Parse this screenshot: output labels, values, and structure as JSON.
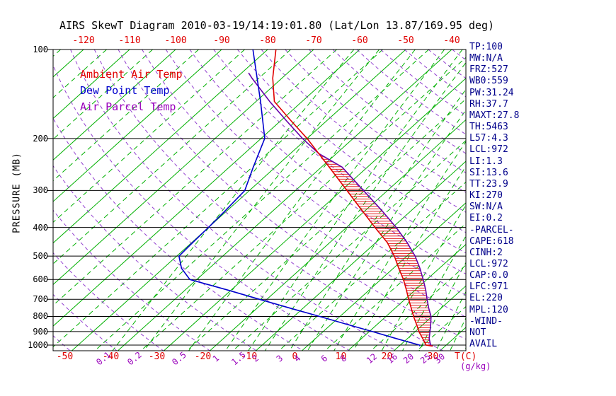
{
  "title": "AIRS SkewT Diagram 2010-03-19/14:19:01.80 (Lat/Lon 13.87/169.95 deg)",
  "legend": {
    "ambient": "Ambient Air Temp",
    "dew": "Dew Point Temp",
    "parcel": "Air Parcel Temp"
  },
  "axes": {
    "pressure_axis_label": "PRESSURE (MB)",
    "pressure_ticks": [
      100,
      200,
      300,
      400,
      500,
      600,
      700,
      800,
      900,
      1000
    ],
    "top_temp_ticks": [
      -120,
      -110,
      -100,
      -90,
      -80,
      -70,
      -60,
      -50,
      -40
    ],
    "bottom_temp_ticks": [
      -50,
      -40,
      -30,
      -20,
      -10,
      0,
      10,
      20,
      30
    ],
    "temp_unit_label": "T(C)",
    "mixing_ratio_ticks": [
      0.1,
      0.2,
      0.5,
      1,
      1.5,
      2,
      3,
      4,
      6,
      8,
      12,
      16,
      20,
      25,
      30
    ],
    "mixing_unit_label": "(g/kg)"
  },
  "stats_panel": {
    "lines": [
      "TP:100",
      "MW:N/A",
      "FRZ:527",
      "WB0:559",
      "PW:31.24",
      "RH:37.7",
      "MAXT:27.8",
      "TH:5463",
      "L57:4.3",
      "LCL:972",
      "LI:1.3",
      "SI:13.6",
      "TT:23.9",
      "KI:270",
      "SW:N/A",
      "EI:0.2",
      "-PARCEL-",
      "CAPE:618",
      "CINH:2",
      "LCL:972",
      "CAP:0.0",
      "LFC:971",
      "EL:220",
      "MPL:120",
      "-WIND-",
      "NOT",
      "AVAIL"
    ]
  },
  "colors": {
    "ambient": "#e00000",
    "dew": "#0000cd",
    "parcel": "#6600aa",
    "isotherm": "#00b000",
    "mixing_line": "#00b000",
    "dry_adiabat": "#9340d0",
    "isobar": "#000000",
    "tick_red": "#e00000",
    "mixing_label": "#9900bb",
    "stats_text": "#00008b",
    "title_text": "#000000"
  },
  "chart_data": {
    "type": "line",
    "title": "AIRS SkewT Diagram 2010-03-19/14:19:01.80 (Lat/Lon 13.87/169.95 deg)",
    "y_axis": {
      "label": "PRESSURE (MB)",
      "scale": "log",
      "range": [
        100,
        1045
      ],
      "ticks": [
        100,
        200,
        300,
        400,
        500,
        600,
        700,
        800,
        900,
        1000
      ]
    },
    "x_axis": {
      "label": "T(C)",
      "skew": true,
      "top_ticks_at_100mb": [
        -120,
        -110,
        -100,
        -90,
        -80,
        -70,
        -60,
        -50,
        -40
      ],
      "bottom_ticks_at_1000mb": [
        -50,
        -40,
        -30,
        -20,
        -10,
        0,
        10,
        20,
        30
      ]
    },
    "grid": {
      "isotherms_c": {
        "min": -160,
        "max": 45,
        "step": 5
      },
      "dry_adiabats_k": {
        "min": 210,
        "max": 460,
        "step": 10
      },
      "mixing_ratios_gkg": [
        0.1,
        0.2,
        0.5,
        1,
        1.5,
        2,
        3,
        4,
        6,
        8,
        12,
        16,
        20,
        25,
        30
      ]
    },
    "series": [
      {
        "id": "ambient-temp-curve",
        "name": "Ambient Air Temp",
        "color": "#e00000",
        "points_p_t": [
          [
            100,
            -78.2
          ],
          [
            125,
            -72.0
          ],
          [
            150,
            -66.0
          ],
          [
            175,
            -57.5
          ],
          [
            200,
            -50.0
          ],
          [
            250,
            -38.3
          ],
          [
            300,
            -28.8
          ],
          [
            350,
            -20.8
          ],
          [
            400,
            -13.8
          ],
          [
            450,
            -7.5
          ],
          [
            500,
            -2.7
          ],
          [
            550,
            1.2
          ],
          [
            600,
            4.9
          ],
          [
            650,
            8.0
          ],
          [
            700,
            10.8
          ],
          [
            750,
            13.5
          ],
          [
            800,
            16.0
          ],
          [
            850,
            18.5
          ],
          [
            900,
            20.8
          ],
          [
            950,
            23.3
          ],
          [
            1000,
            25.6
          ],
          [
            1008,
            27.3
          ]
        ]
      },
      {
        "id": "dew-point-curve",
        "name": "Dew Point Temp",
        "color": "#0000cd",
        "points_p_t": [
          [
            100,
            -83.2
          ],
          [
            150,
            -69.0
          ],
          [
            200,
            -59.2
          ],
          [
            250,
            -54.8
          ],
          [
            300,
            -51.0
          ],
          [
            350,
            -50.4
          ],
          [
            400,
            -50.0
          ],
          [
            450,
            -49.8
          ],
          [
            500,
            -49.5
          ],
          [
            550,
            -46.0
          ],
          [
            600,
            -41.5
          ],
          [
            650,
            -31.0
          ],
          [
            700,
            -21.6
          ],
          [
            750,
            -12.8
          ],
          [
            800,
            -4.4
          ],
          [
            850,
            3.3
          ],
          [
            900,
            10.7
          ],
          [
            950,
            17.5
          ],
          [
            1000,
            24.2
          ],
          [
            1008,
            24.5
          ]
        ]
      },
      {
        "id": "parcel-temp-curve",
        "name": "Air Parcel Temp",
        "color": "#6600aa",
        "points_p_t": [
          [
            120,
            -78.5
          ],
          [
            125,
            -76.5
          ],
          [
            150,
            -67.0
          ],
          [
            175,
            -58.5
          ],
          [
            200,
            -51.0
          ],
          [
            225,
            -43.8
          ],
          [
            250,
            -35.5
          ],
          [
            300,
            -25.2
          ],
          [
            350,
            -16.5
          ],
          [
            400,
            -9.2
          ],
          [
            450,
            -3.2
          ],
          [
            500,
            1.8
          ],
          [
            550,
            5.8
          ],
          [
            600,
            9.2
          ],
          [
            650,
            12.2
          ],
          [
            700,
            14.8
          ],
          [
            750,
            17.3
          ],
          [
            800,
            19.8
          ],
          [
            850,
            21.6
          ],
          [
            900,
            23.2
          ],
          [
            950,
            24.7
          ],
          [
            1000,
            26.6
          ],
          [
            1008,
            27.3
          ]
        ]
      }
    ],
    "cape_hatch": {
      "between": [
        "parcel-temp-curve",
        "ambient-temp-curve"
      ],
      "pressure_range": [
        222,
        1005
      ]
    }
  }
}
